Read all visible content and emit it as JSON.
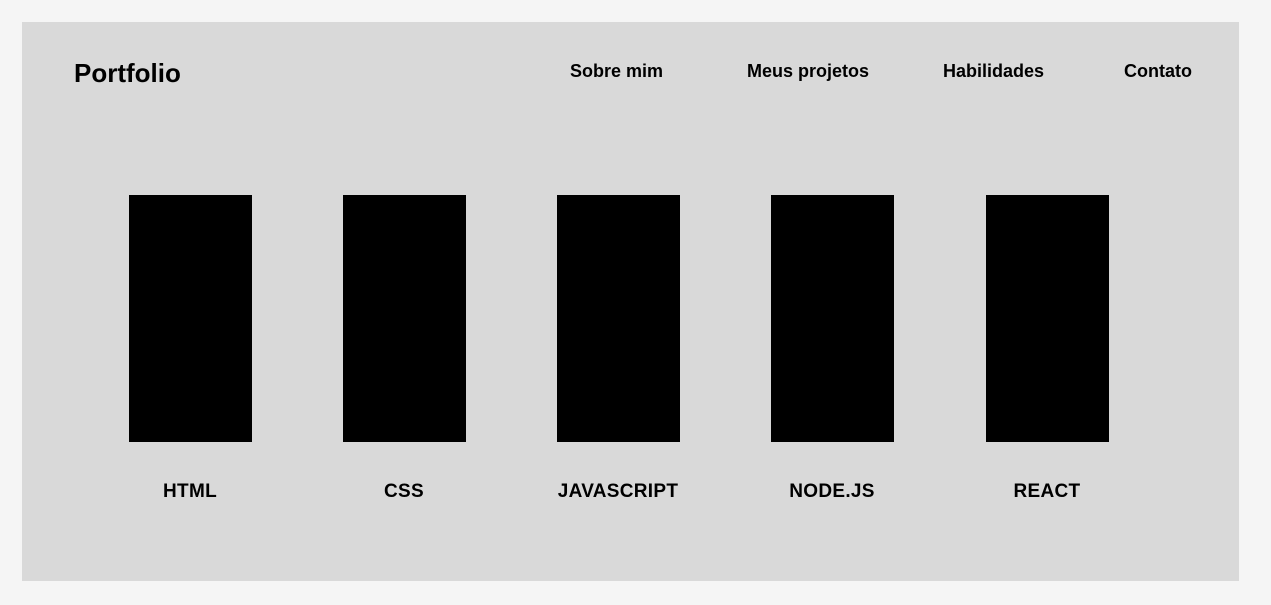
{
  "header": {
    "brand": "Portfolio",
    "nav": [
      {
        "label": "Sobre mim"
      },
      {
        "label": "Meus projetos"
      },
      {
        "label": "Habilidades"
      },
      {
        "label": "Contato"
      }
    ]
  },
  "skills": [
    {
      "label": "HTML"
    },
    {
      "label": "CSS"
    },
    {
      "label": "JAVASCRIPT"
    },
    {
      "label": "NODE.JS"
    },
    {
      "label": "REACT"
    }
  ]
}
